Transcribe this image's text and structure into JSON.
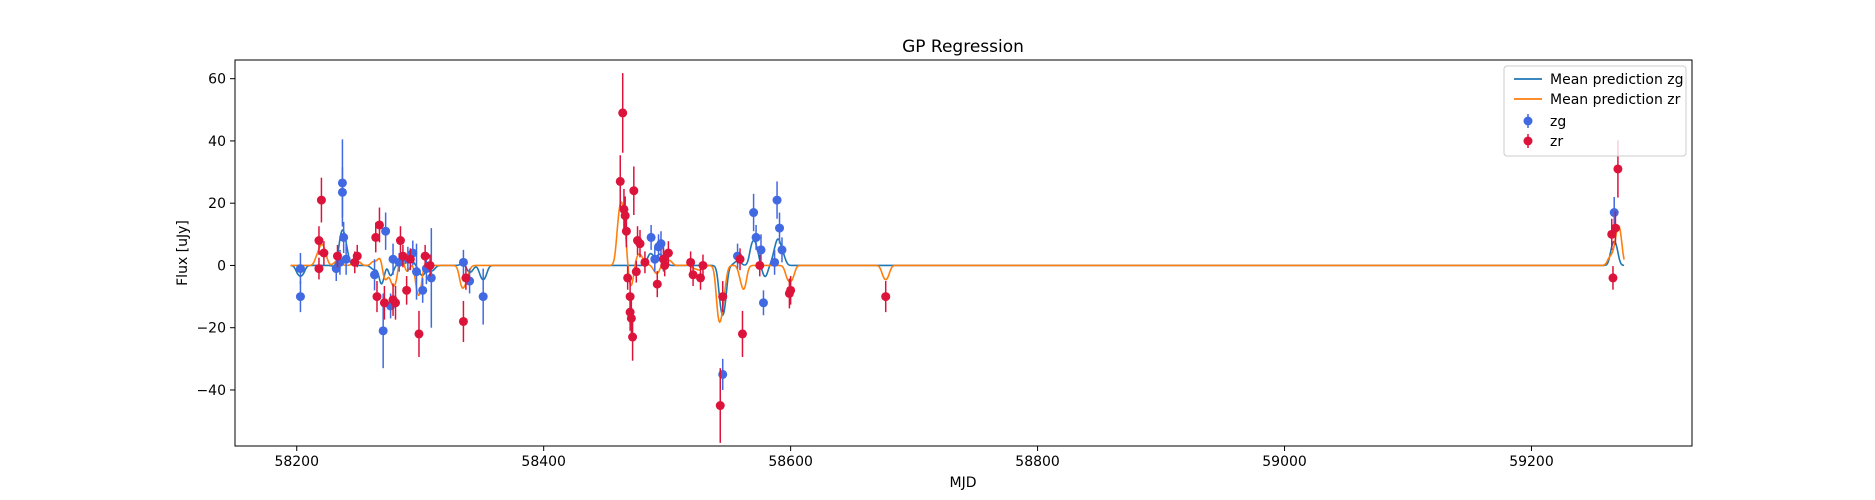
{
  "chart_data": {
    "type": "scatter",
    "title": "GP Regression",
    "xlabel": "MJD",
    "ylabel": "Flux [uJy]",
    "xlim": [
      58150,
      59330
    ],
    "ylim": [
      -58,
      66
    ],
    "xticks": [
      58200,
      58400,
      58600,
      58800,
      59000,
      59200
    ],
    "yticks": [
      -40,
      -20,
      0,
      20,
      40,
      60
    ],
    "grid": false,
    "legend_position": "top-right",
    "series": [
      {
        "name": "zg",
        "kind": "errorbar",
        "color": "#4169e1",
        "x": [
          58203,
          58203,
          58232,
          58235,
          58237,
          58237,
          58238,
          58240,
          58263,
          58270,
          58272,
          58276,
          58278,
          58283,
          58290,
          58294,
          58297,
          58302,
          58305,
          58309,
          58335,
          58340,
          58351,
          58487,
          58490,
          58493,
          58495,
          58497,
          58545,
          58557,
          58570,
          58572,
          58576,
          58578,
          58587,
          58589,
          58591,
          58593,
          59267
        ],
        "y": [
          -1,
          -10,
          -1,
          1,
          23.5,
          26.5,
          9,
          2,
          -3,
          -21,
          11,
          -13,
          2,
          1,
          2,
          4,
          -2,
          -8,
          -1,
          -4,
          1,
          -5,
          -10,
          9,
          2,
          6,
          7,
          2,
          -35,
          3,
          17,
          9,
          5,
          -12,
          1,
          21,
          12,
          5,
          17
        ],
        "err": [
          5,
          5,
          4,
          4,
          8,
          14,
          5,
          5,
          5,
          12,
          6,
          4,
          5,
          3,
          4,
          4,
          9,
          4,
          5,
          16,
          4,
          4,
          9,
          4,
          4,
          4,
          4,
          4,
          5,
          4,
          6,
          4,
          5,
          4,
          4,
          6,
          5,
          4,
          5
        ]
      },
      {
        "name": "zr",
        "kind": "errorbar",
        "color": "#dc143c",
        "x": [
          58218,
          58218,
          58220,
          58222,
          58233,
          58247,
          58249,
          58264,
          58265,
          58267,
          58271,
          58278,
          58280,
          58284,
          58286,
          58289,
          58292,
          58299,
          58304,
          58308,
          58335,
          58337,
          58462,
          58464,
          58465,
          58466,
          58467,
          58468,
          58470,
          58470,
          58471,
          58472,
          58473,
          58475,
          58476,
          58478,
          58482,
          58492,
          58497,
          58498,
          58501,
          58519,
          58521,
          58527,
          58529,
          58543,
          58545,
          58559,
          58561,
          58575,
          58599,
          58600,
          58677,
          59265,
          59266,
          59268,
          59270
        ],
        "y": [
          8,
          -1,
          21,
          4,
          3,
          1,
          3,
          9,
          -10,
          13,
          -12,
          -11,
          -12,
          8,
          3,
          -8,
          2,
          -22,
          3,
          0,
          -18,
          -4,
          27,
          49,
          18,
          16,
          11,
          -4,
          -10,
          -15,
          -17,
          -23,
          24,
          -2,
          8,
          7,
          1,
          -6,
          2,
          0,
          4,
          1,
          -3,
          -4,
          0,
          -45,
          -10,
          2,
          -22,
          0,
          -9,
          -8,
          -10,
          10,
          -4,
          12,
          31
        ]
      }
    ],
    "lines": [
      {
        "name": "Mean prediction zg",
        "color": "#1f77b4"
      },
      {
        "name": "Mean prediction zr",
        "color": "#ff7f0e"
      }
    ],
    "legend": [
      "Mean prediction zg",
      "Mean prediction zr",
      "zg",
      "zr"
    ]
  }
}
